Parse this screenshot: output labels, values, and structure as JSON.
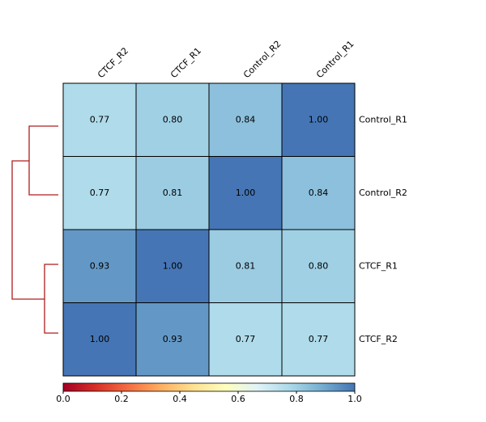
{
  "chart_data": {
    "type": "heatmap",
    "x_categories": [
      "CTCF_R2",
      "CTCF_R1",
      "Control_R2",
      "Control_R1"
    ],
    "y_categories": [
      "Control_R1",
      "Control_R2",
      "CTCF_R1",
      "CTCF_R2"
    ],
    "values": [
      [
        0.77,
        0.8,
        0.84,
        1
      ],
      [
        0.77,
        0.81,
        1,
        0.84
      ],
      [
        0.93,
        1,
        0.81,
        0.8
      ],
      [
        1,
        0.93,
        0.77,
        0.77
      ]
    ],
    "value_labels": [
      [
        "0.77",
        "0.80",
        "0.84",
        "1.00"
      ],
      [
        "0.77",
        "0.81",
        "1.00",
        "0.84"
      ],
      [
        "0.93",
        "1.00",
        "0.81",
        "0.80"
      ],
      [
        "1.00",
        "0.93",
        "0.77",
        "0.77"
      ]
    ],
    "colormap": [
      "#a50026",
      "#d73027",
      "#f46d43",
      "#fdae61",
      "#fee090",
      "#ffffbf",
      "#e0f3f8",
      "#abd9e9",
      "#74add1",
      "#4575b4"
    ],
    "clim": [
      0,
      1
    ],
    "cticks": [
      {
        "value": 0,
        "label": "0.0"
      },
      0.2,
      0.4,
      0.6,
      0.8,
      {
        "value": 1,
        "label": "1.0"
      }
    ]
  }
}
